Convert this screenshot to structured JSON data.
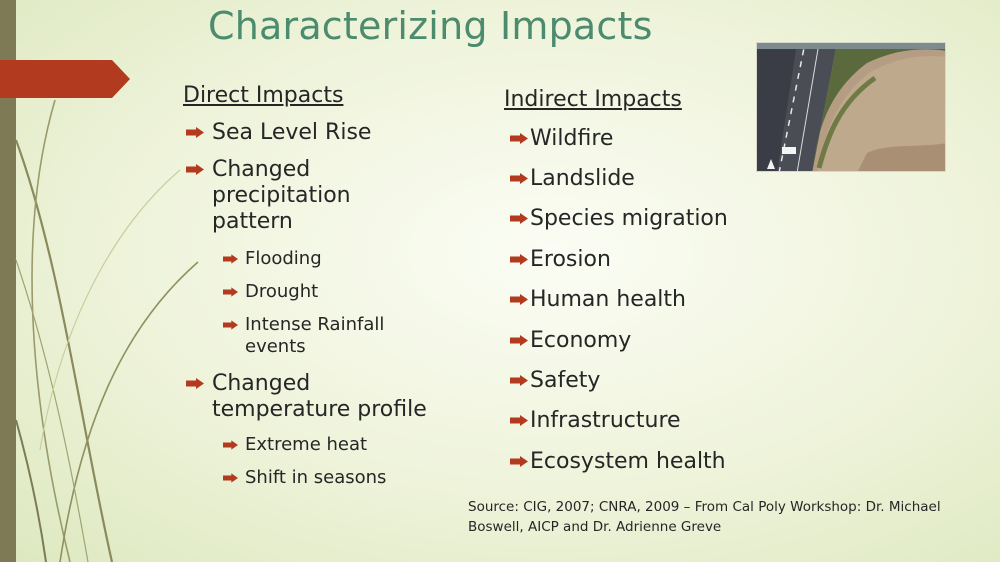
{
  "slide": {
    "title": "Characterizing Impacts",
    "direct": {
      "heading": "Direct Impacts",
      "items": [
        {
          "label": "Sea Level Rise"
        },
        {
          "label_lines": [
            "Changed",
            "precipitation",
            "pattern"
          ]
        },
        {
          "label": "Flooding"
        },
        {
          "label": "Drought"
        },
        {
          "label_lines": [
            "Intense Rainfall",
            "events"
          ]
        },
        {
          "label_lines": [
            "Changed",
            "temperature profile"
          ]
        },
        {
          "label": "Extreme heat"
        },
        {
          "label": "Shift in seasons"
        }
      ]
    },
    "indirect": {
      "heading": "Indirect Impacts",
      "items": [
        "Wildfire",
        "Landslide",
        "Species migration",
        "Erosion",
        "Human health",
        "Economy",
        "Safety",
        "Infrastructure",
        "Ecosystem health"
      ]
    },
    "source_lines": [
      "Source: CIG, 2007; CNRA, 2009 – From Cal Poly Workshop: Dr. Michael",
      "Boswell, AICP and Dr. Adrienne Greve"
    ],
    "colors": {
      "accent": "#b23a1e",
      "title": "#4c8b6e",
      "side_bar": "#7d7a55"
    },
    "icons": {
      "bullet": "arrow-bullet-icon"
    }
  }
}
